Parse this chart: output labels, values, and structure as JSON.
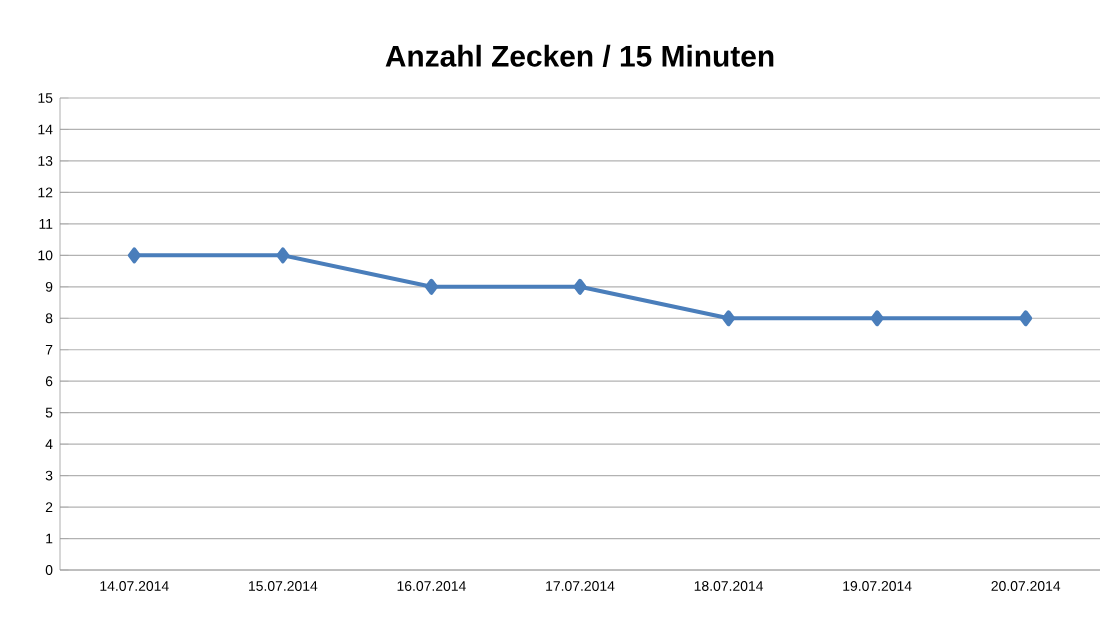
{
  "chart_data": {
    "type": "line",
    "title": "Anzahl Zecken / 15 Minuten",
    "categories": [
      "14.07.2014",
      "15.07.2014",
      "16.07.2014",
      "17.07.2014",
      "18.07.2014",
      "19.07.2014",
      "20.07.2014"
    ],
    "series": [
      {
        "color": "#4a7ebb",
        "values": [
          10,
          10,
          9,
          9,
          8,
          8,
          8
        ]
      }
    ],
    "ylim": [
      0,
      15
    ],
    "yticks": [
      0,
      1,
      2,
      3,
      4,
      5,
      6,
      7,
      8,
      9,
      10,
      11,
      12,
      13,
      14,
      15
    ],
    "grid": "y",
    "marker": "diamond",
    "line_style": "solid"
  }
}
